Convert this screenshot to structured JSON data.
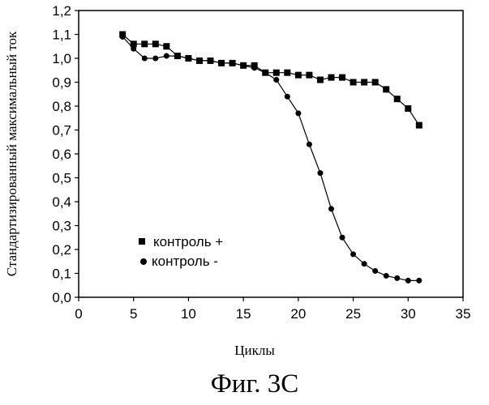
{
  "chart_data": {
    "type": "line",
    "xlabel": "Циклы",
    "ylabel": "Стандартизированный максимальный ток",
    "xlim": [
      0,
      35
    ],
    "ylim": [
      0,
      1.2
    ],
    "xticks": [
      "0",
      "5",
      "10",
      "15",
      "20",
      "25",
      "30",
      "35"
    ],
    "yticks": [
      "0,0",
      "0,1",
      "0,2",
      "0,3",
      "0,4",
      "0,5",
      "0,6",
      "0,7",
      "0,8",
      "0,9",
      "1,0",
      "1,1",
      "1,2"
    ],
    "grid": false,
    "legend_position": "lower-left",
    "series": [
      {
        "name": "контроль +",
        "marker": "square",
        "color": "#000000",
        "x": [
          4,
          5,
          6,
          7,
          8,
          9,
          10,
          11,
          12,
          13,
          14,
          15,
          16,
          17,
          18,
          19,
          20,
          21,
          22,
          23,
          24,
          25,
          26,
          27,
          28,
          29,
          30,
          31
        ],
        "y": [
          1.1,
          1.06,
          1.06,
          1.06,
          1.05,
          1.01,
          1.0,
          0.99,
          0.99,
          0.98,
          0.98,
          0.97,
          0.97,
          0.94,
          0.94,
          0.94,
          0.93,
          0.93,
          0.91,
          0.92,
          0.92,
          0.9,
          0.9,
          0.9,
          0.87,
          0.83,
          0.79,
          0.72
        ]
      },
      {
        "name": "контроль -",
        "marker": "circle",
        "color": "#000000",
        "x": [
          4,
          5,
          6,
          7,
          8,
          9,
          10,
          11,
          12,
          13,
          14,
          15,
          16,
          17,
          18,
          19,
          20,
          21,
          22,
          23,
          24,
          25,
          26,
          27,
          28,
          29,
          30,
          31
        ],
        "y": [
          1.09,
          1.04,
          1.0,
          1.0,
          1.01,
          1.01,
          1.0,
          0.99,
          0.99,
          0.98,
          0.98,
          0.97,
          0.96,
          0.94,
          0.91,
          0.84,
          0.77,
          0.64,
          0.52,
          0.37,
          0.25,
          0.18,
          0.14,
          0.11,
          0.09,
          0.08,
          0.07,
          0.07
        ]
      }
    ]
  },
  "caption": "Фиг. 3C"
}
